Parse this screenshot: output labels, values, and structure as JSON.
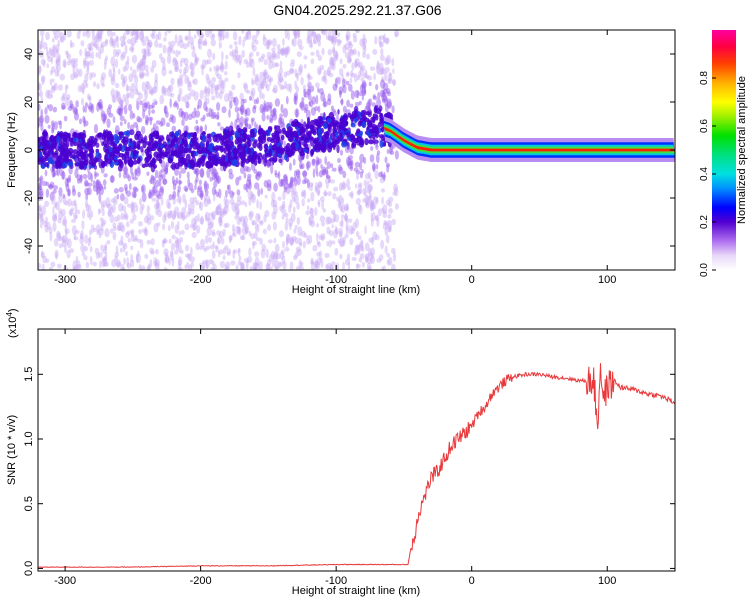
{
  "title": "GN04.2025.292.21.37.G06",
  "chart_data": [
    {
      "type": "heatmap",
      "xlabel": "Height of straight line (km)",
      "ylabel": "Frequency (Hz)",
      "xlim": [
        -320,
        150
      ],
      "ylim": [
        -50,
        50
      ],
      "xticks": [
        -300,
        -200,
        -100,
        0,
        100
      ],
      "xtick_labels": [
        "-300",
        "-200",
        "-100",
        "0",
        "100"
      ],
      "yticks": [
        -40,
        -20,
        0,
        20,
        40
      ],
      "ytick_labels": [
        "-40",
        "-20",
        "0",
        "20",
        "40"
      ],
      "colorbar": {
        "label": "Normalized spectral amplitude",
        "range": [
          0,
          1
        ],
        "ticks": [
          0.0,
          0.2,
          0.4,
          0.6,
          0.8
        ],
        "tick_labels": [
          "0.0",
          "0.2",
          "0.4",
          "0.6",
          "0.8"
        ]
      },
      "ridge": {
        "name": "",
        "x": [
          -320,
          -250,
          -200,
          -150,
          -100,
          -70,
          -60,
          -50,
          -40,
          -30,
          -20,
          0,
          50,
          100,
          150
        ],
        "y": [
          0,
          0,
          0,
          2,
          8,
          10,
          8,
          4,
          1,
          0,
          0,
          0,
          0,
          0,
          0
        ]
      }
    },
    {
      "type": "line",
      "xlabel": "Height of straight line (km)",
      "ylabel": "SNR (10 * v/v)",
      "y_multiplier_label": "(x10",
      "y_multiplier_exponent": "4",
      "y_multiplier_close": ")",
      "xlim": [
        -320,
        150
      ],
      "ylim": [
        -0.02,
        1.85
      ],
      "xticks": [
        -300,
        -200,
        -100,
        0,
        100
      ],
      "xtick_labels": [
        "-300",
        "-200",
        "-100",
        "0",
        "100"
      ],
      "yticks": [
        0.0,
        0.5,
        1.0,
        1.5
      ],
      "ytick_labels": [
        "0.0",
        "0.5",
        "1.0",
        "1.5"
      ],
      "series": [
        {
          "name": "",
          "color": "#e8383a",
          "x": [
            -320,
            -300,
            -250,
            -200,
            -150,
            -100,
            -60,
            -47,
            -45,
            -42,
            -40,
            -35,
            -30,
            -25,
            -20,
            -15,
            -10,
            -5,
            0,
            5,
            10,
            15,
            20,
            25,
            30,
            40,
            50,
            60,
            70,
            80,
            85,
            90,
            93,
            95,
            97,
            100,
            105,
            110,
            120,
            130,
            140,
            150
          ],
          "y": [
            0.01,
            0.01,
            0.01,
            0.02,
            0.02,
            0.03,
            0.03,
            0.03,
            0.15,
            0.25,
            0.4,
            0.55,
            0.7,
            0.75,
            0.85,
            0.95,
            1.0,
            1.05,
            1.1,
            1.2,
            1.25,
            1.35,
            1.4,
            1.45,
            1.48,
            1.5,
            1.5,
            1.48,
            1.47,
            1.45,
            1.45,
            1.45,
            1.1,
            1.6,
            1.3,
            1.4,
            1.45,
            1.4,
            1.38,
            1.35,
            1.33,
            1.28
          ]
        }
      ]
    }
  ],
  "colors": {
    "snr_line": "#e8383a",
    "frame": "#000000",
    "background": "#ffffff"
  }
}
